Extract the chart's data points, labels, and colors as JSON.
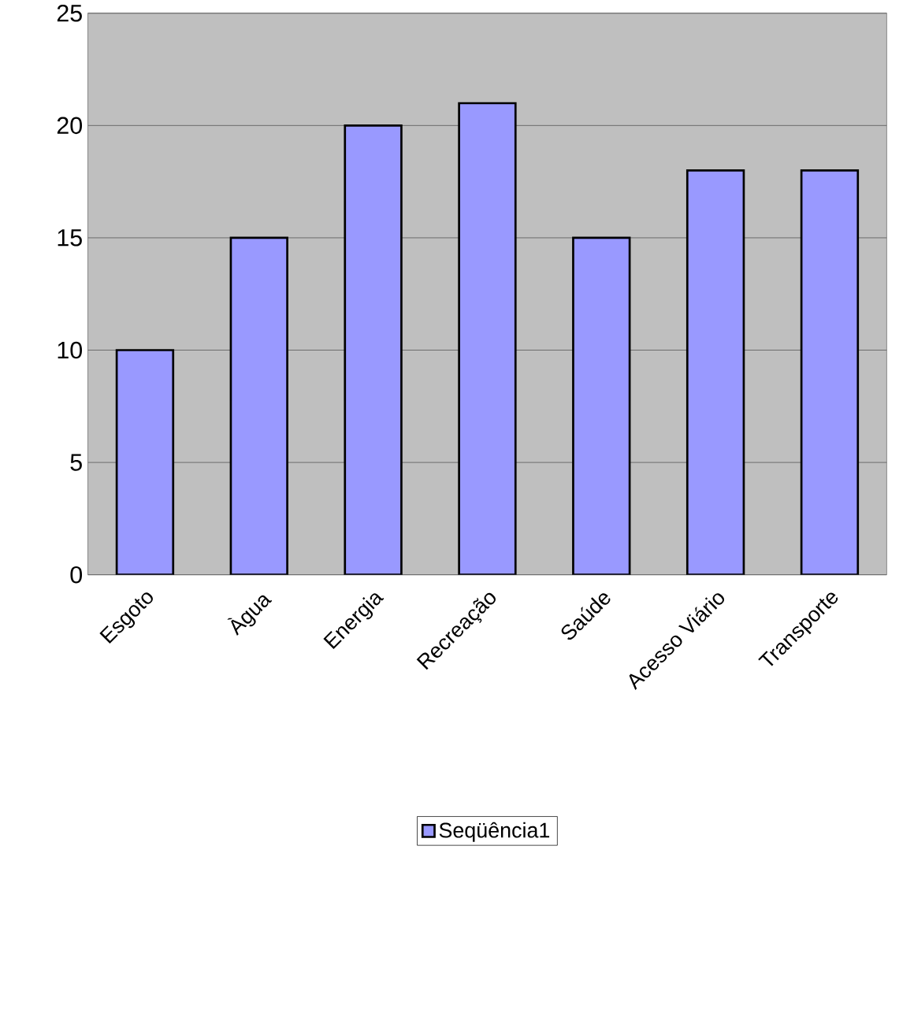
{
  "chart_data": {
    "type": "bar",
    "categories": [
      "Esgoto",
      "Àgua",
      "Energia",
      "Recreação",
      "Saúde",
      "Acesso Viário",
      "Transporte"
    ],
    "series": [
      {
        "name": "Seqüência1",
        "color": "#9999ff",
        "values": [
          10,
          15,
          20,
          21,
          15,
          18,
          18
        ]
      }
    ],
    "ylim": [
      0,
      25
    ],
    "yticks": [
      0,
      5,
      10,
      15,
      20,
      25
    ],
    "grid": "y",
    "legend": "bottom"
  }
}
